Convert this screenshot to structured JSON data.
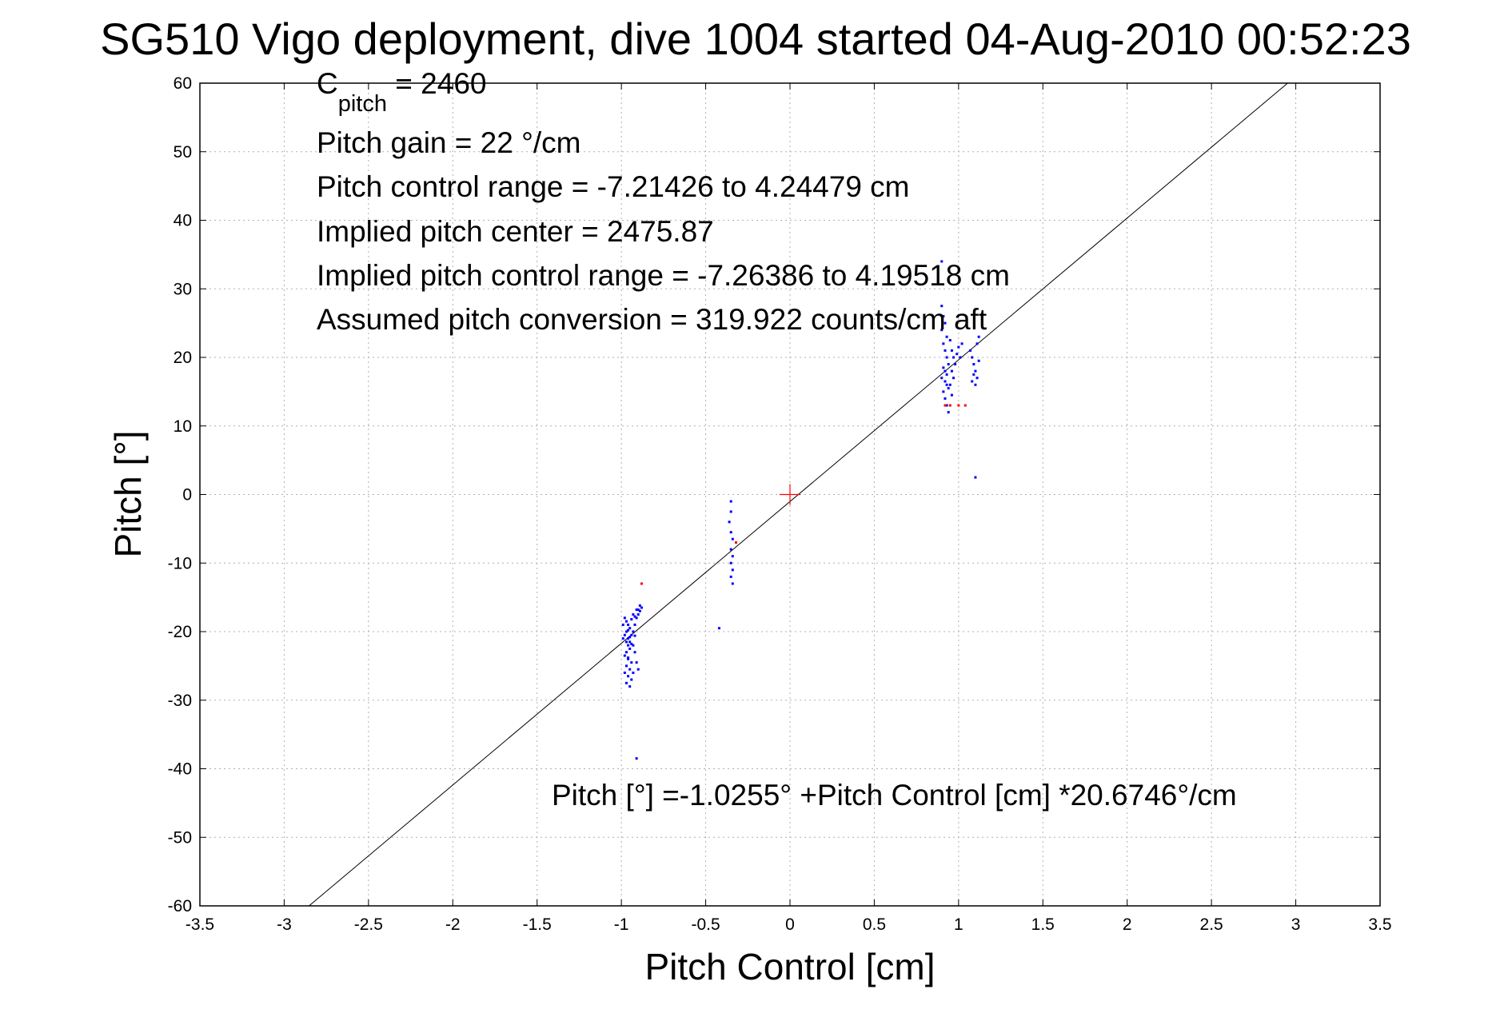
{
  "chart_data": {
    "type": "scatter",
    "title": "SG510 Vigo deployment, dive 1004 started 04-Aug-2010 00:52:23",
    "xlabel": "Pitch Control [cm]",
    "ylabel": "Pitch [°]",
    "xlim": [
      -3.5,
      3.5
    ],
    "ylim": [
      -60,
      60
    ],
    "grid": true,
    "x_ticks": [
      -3.5,
      -3,
      -2.5,
      -2,
      -1.5,
      -1,
      -0.5,
      0,
      0.5,
      1,
      1.5,
      2,
      2.5,
      3,
      3.5
    ],
    "x_tick_labels": [
      "-3.5",
      "-3",
      "-2.5",
      "-2",
      "-1.5",
      "-1",
      "-0.5",
      "0",
      "0.5",
      "1",
      "1.5",
      "2",
      "2.5",
      "3",
      "3.5"
    ],
    "y_ticks": [
      -60,
      -50,
      -40,
      -30,
      -20,
      -10,
      0,
      10,
      20,
      30,
      40,
      50,
      60
    ],
    "y_tick_labels": [
      "-60",
      "-50",
      "-40",
      "-30",
      "-20",
      "-10",
      "0",
      "10",
      "20",
      "30",
      "40",
      "50",
      "60"
    ],
    "annotations": {
      "c_pitch_prefix": "C",
      "c_pitch_sub": "pitch",
      "c_pitch_value": " = 2460",
      "pitch_gain": "Pitch gain = 22 °/cm",
      "control_range": "Pitch control range = -7.21426 to 4.24479 cm",
      "implied_center": "Implied pitch center = 2475.87",
      "implied_range": "Implied pitch control range = -7.26386 to 4.19518 cm",
      "assumed_conversion": "Assumed pitch conversion = 319.922 counts/cm aft",
      "fit_equation": "Pitch [°] =-1.0255° +Pitch Control [cm] *20.6746°/cm"
    },
    "fit_line": {
      "intercept": -1.0255,
      "slope": 20.6746,
      "color": "#000000"
    },
    "origin_marker": {
      "x": 0,
      "y": 0,
      "color": "#ff0000"
    },
    "series": [
      {
        "color": "#0000ff",
        "points": [
          [
            -0.97,
            -18.5
          ],
          [
            -0.96,
            -19.0
          ],
          [
            -0.95,
            -19.5
          ],
          [
            -0.97,
            -20.0
          ],
          [
            -0.94,
            -20.5
          ],
          [
            -0.96,
            -21.0
          ],
          [
            -0.95,
            -21.5
          ],
          [
            -0.93,
            -20.0
          ],
          [
            -0.92,
            -19.0
          ],
          [
            -0.91,
            -18.0
          ],
          [
            -0.9,
            -17.5
          ],
          [
            -0.89,
            -17.0
          ],
          [
            -0.88,
            -16.5
          ],
          [
            -0.9,
            -16.8
          ],
          [
            -0.92,
            -17.8
          ],
          [
            -0.94,
            -18.2
          ],
          [
            -0.96,
            -19.8
          ],
          [
            -0.98,
            -20.5
          ],
          [
            -0.97,
            -21.5
          ],
          [
            -0.96,
            -22.0
          ],
          [
            -0.95,
            -22.5
          ],
          [
            -0.97,
            -23.0
          ],
          [
            -0.98,
            -23.5
          ],
          [
            -0.96,
            -24.0
          ],
          [
            -0.94,
            -24.5
          ],
          [
            -0.97,
            -25.0
          ],
          [
            -0.95,
            -25.5
          ],
          [
            -0.93,
            -26.0
          ],
          [
            -0.96,
            -26.5
          ],
          [
            -0.94,
            -27.0
          ],
          [
            -0.97,
            -27.5
          ],
          [
            -0.95,
            -28.0
          ],
          [
            -0.92,
            -23.0
          ],
          [
            -0.91,
            -24.5
          ],
          [
            -0.9,
            -25.5
          ],
          [
            -0.93,
            -22.0
          ],
          [
            -0.99,
            -21.0
          ],
          [
            -0.99,
            -19.0
          ],
          [
            -0.98,
            -18.0
          ],
          [
            -0.93,
            -17.5
          ],
          [
            -0.91,
            -16.8
          ],
          [
            -0.89,
            -16.2
          ],
          [
            -0.95,
            -20.8
          ],
          [
            -0.94,
            -21.8
          ],
          [
            -0.92,
            -20.6
          ],
          [
            -0.96,
            -23.8
          ],
          [
            -0.98,
            -26.0
          ],
          [
            -0.91,
            -38.5
          ],
          [
            -0.35,
            -1.0
          ],
          [
            -0.35,
            -2.5
          ],
          [
            -0.36,
            -4.0
          ],
          [
            -0.35,
            -5.5
          ],
          [
            -0.34,
            -6.5
          ],
          [
            -0.35,
            -8.0
          ],
          [
            -0.34,
            -9.0
          ],
          [
            -0.35,
            -10.0
          ],
          [
            -0.34,
            -11.0
          ],
          [
            -0.35,
            -12.0
          ],
          [
            -0.34,
            -13.0
          ],
          [
            -0.42,
            -19.5
          ],
          [
            0.9,
            34.0
          ],
          [
            0.9,
            27.5
          ],
          [
            0.91,
            26.0
          ],
          [
            0.92,
            25.0
          ],
          [
            0.9,
            24.0
          ],
          [
            0.93,
            23.0
          ],
          [
            0.95,
            22.5
          ],
          [
            0.91,
            22.0
          ],
          [
            0.92,
            21.0
          ],
          [
            0.93,
            20.0
          ],
          [
            0.94,
            19.0
          ],
          [
            0.91,
            18.5
          ],
          [
            0.92,
            18.0
          ],
          [
            0.93,
            17.5
          ],
          [
            0.9,
            17.0
          ],
          [
            0.92,
            16.5
          ],
          [
            0.93,
            16.0
          ],
          [
            0.94,
            15.5
          ],
          [
            0.91,
            15.0
          ],
          [
            0.92,
            14.0
          ],
          [
            0.93,
            13.0
          ],
          [
            0.94,
            12.0
          ],
          [
            0.96,
            21.0
          ],
          [
            0.97,
            20.0
          ],
          [
            0.98,
            19.0
          ],
          [
            0.96,
            18.0
          ],
          [
            0.97,
            17.0
          ],
          [
            0.95,
            16.0
          ],
          [
            0.99,
            20.5
          ],
          [
            1.0,
            21.5
          ],
          [
            1.02,
            22.0
          ],
          [
            1.01,
            20.0
          ],
          [
            0.96,
            14.5
          ],
          [
            1.07,
            21.0
          ],
          [
            1.08,
            20.0
          ],
          [
            1.09,
            19.0
          ],
          [
            1.1,
            18.0
          ],
          [
            1.11,
            17.0
          ],
          [
            1.08,
            16.5
          ],
          [
            1.1,
            16.0
          ],
          [
            1.12,
            19.5
          ],
          [
            1.11,
            22.0
          ],
          [
            1.09,
            17.5
          ],
          [
            1.12,
            23.0
          ],
          [
            1.1,
            2.5
          ]
        ]
      },
      {
        "color": "#ff0000",
        "points": [
          [
            -0.88,
            -13.0
          ],
          [
            -0.32,
            -7.0
          ],
          [
            0.92,
            13.0
          ],
          [
            0.95,
            13.0
          ],
          [
            1.0,
            13.0
          ],
          [
            1.04,
            13.0
          ]
        ]
      }
    ]
  }
}
